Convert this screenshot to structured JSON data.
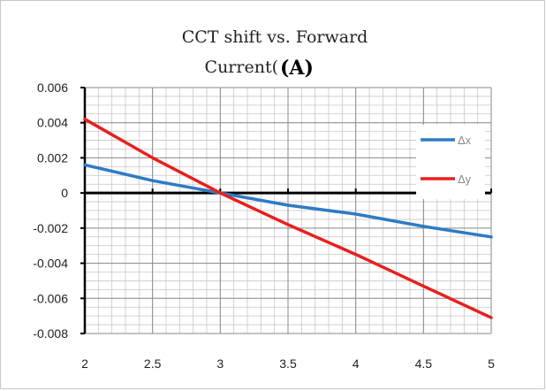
{
  "chart_data": {
    "type": "line",
    "title_line1": "CCT shift vs. Forward",
    "title_line2_prefix": "Current(",
    "title_line2_bold": "(A)",
    "xlabel": "",
    "ylabel": "",
    "x": [
      2,
      2.5,
      3,
      3.5,
      4,
      4.5,
      5
    ],
    "x_tick_labels": [
      "2",
      "2.5",
      "3",
      "3.5",
      "4",
      "4.5",
      "5"
    ],
    "xlim": [
      2,
      5
    ],
    "ylim": [
      -0.008,
      0.006
    ],
    "y_ticks": [
      0.006,
      0.004,
      0.002,
      0,
      -0.002,
      -0.004,
      -0.006,
      -0.008
    ],
    "y_tick_labels": [
      "0.006",
      "0.004",
      "0.002",
      "0",
      "-0.002",
      "-0.004",
      "-0.006",
      "-0.008"
    ],
    "grid": true,
    "legend_position": "right",
    "series": [
      {
        "name": "Δx",
        "color": "#2e7bc4",
        "values": [
          0.0016,
          0.0007,
          0.0,
          -0.0007,
          -0.0012,
          -0.0019,
          -0.0025
        ]
      },
      {
        "name": "Δy",
        "color": "#e8201e",
        "values": [
          0.0042,
          0.002,
          0.0,
          -0.0018,
          -0.0035,
          -0.0053,
          -0.0071
        ]
      }
    ]
  }
}
